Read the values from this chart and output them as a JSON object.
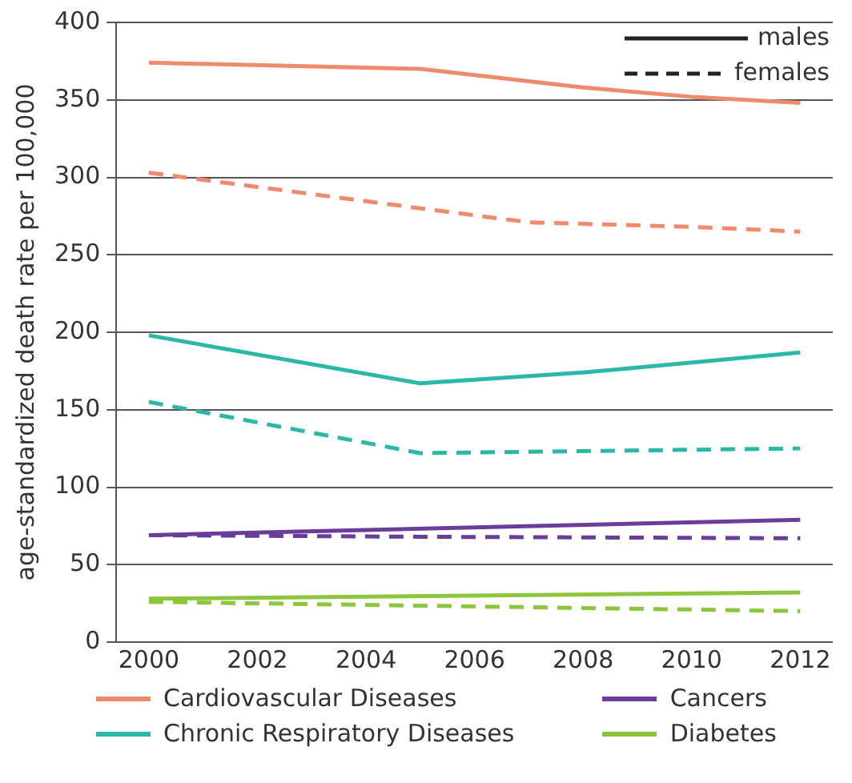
{
  "chart_data": {
    "type": "line",
    "ylabel": "age-standardized death rate per 100,000",
    "xlim": [
      1999.4,
      2012.6
    ],
    "xticks": [
      2000,
      2002,
      2004,
      2006,
      2008,
      2010,
      2012
    ],
    "ylim": [
      0,
      400
    ],
    "yticks": [
      0,
      50,
      100,
      150,
      200,
      250,
      300,
      350,
      400
    ],
    "grid": "y",
    "legend": "bottom",
    "marker": "none",
    "annotations": [
      "males",
      "females"
    ],
    "series": [
      {
        "name": "Cardiovascular Diseases",
        "color": "#f08a6c",
        "line_style": "solid",
        "x": [
          2000,
          2005,
          2008,
          2010,
          2012
        ],
        "values": [
          374,
          370,
          358,
          352,
          348
        ]
      },
      {
        "color": "#f08a6c",
        "line_style": "dashed",
        "x": [
          2000,
          2005,
          2007,
          2010,
          2012
        ],
        "values": [
          303,
          280,
          271,
          268,
          265
        ]
      },
      {
        "name": "Cancers",
        "color": "#6a3d9a",
        "line_style": "solid",
        "x": [
          2000,
          2012
        ],
        "values": [
          69,
          79
        ]
      },
      {
        "color": "#6a3d9a",
        "line_style": "dashed",
        "x": [
          2000,
          2005,
          2012
        ],
        "values": [
          69,
          68,
          67
        ]
      },
      {
        "name": "Chronic Respiratory Diseases",
        "color": "#2bb8a6",
        "line_style": "solid",
        "x": [
          2000,
          2005,
          2008,
          2012
        ],
        "values": [
          198,
          167,
          174,
          187
        ]
      },
      {
        "color": "#2bb8a6",
        "line_style": "dashed",
        "x": [
          2000,
          2005,
          2012
        ],
        "values": [
          155,
          122,
          125
        ]
      },
      {
        "name": "Diabetes",
        "color": "#8cc63f",
        "line_style": "solid",
        "x": [
          2000,
          2012
        ],
        "values": [
          28,
          32
        ]
      },
      {
        "color": "#8cc63f",
        "line_style": "dashed",
        "x": [
          2000,
          2012
        ],
        "values": [
          26,
          20
        ]
      }
    ]
  }
}
